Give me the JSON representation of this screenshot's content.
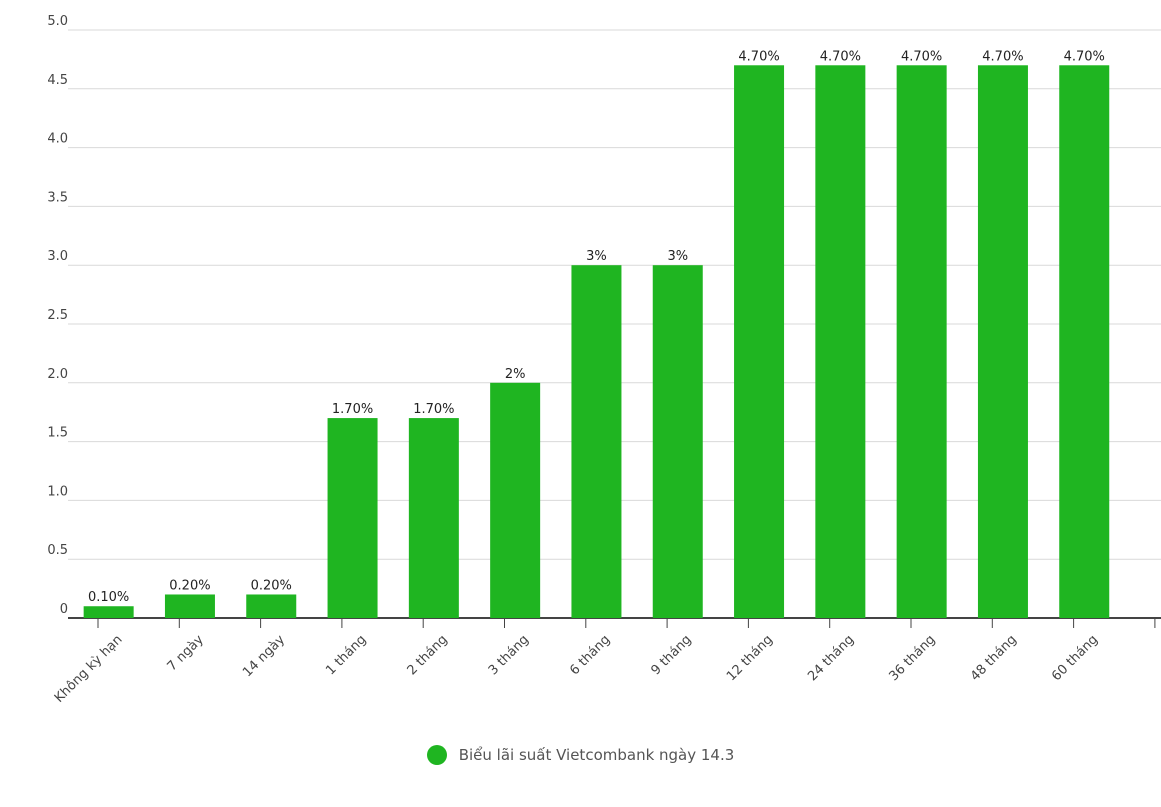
{
  "chart_data": {
    "type": "bar",
    "categories": [
      "Không kỳ hạn",
      "7 ngày",
      "14 ngày",
      "1 tháng",
      "2 tháng",
      "3 tháng",
      "6 tháng",
      "9 tháng",
      "12 tháng",
      "24 tháng",
      "36 tháng",
      "48 tháng",
      "60 tháng"
    ],
    "series": [
      {
        "name": "Biểu lãi suất Vietcombank ngày 14.3",
        "values": [
          0.1,
          0.2,
          0.2,
          1.7,
          1.7,
          2,
          3,
          3,
          4.7,
          4.7,
          4.7,
          4.7,
          4.7
        ],
        "data_labels": [
          "0.10%",
          "0.20%",
          "0.20%",
          "1.70%",
          "1.70%",
          "2%",
          "3%",
          "3%",
          "4.70%",
          "4.70%",
          "4.70%",
          "4.70%",
          "4.70%"
        ]
      }
    ],
    "ylim": [
      0,
      5
    ],
    "yticks": [
      "0",
      "0.5",
      "1.0",
      "1.5",
      "2.0",
      "2.5",
      "3.0",
      "3.5",
      "4.0",
      "4.5",
      "5.0"
    ],
    "grid": true,
    "legend_position": "bottom-center",
    "bar_color": "#1fb521"
  }
}
